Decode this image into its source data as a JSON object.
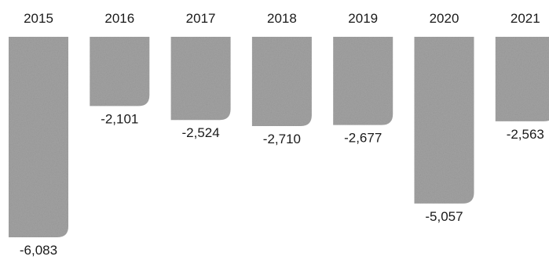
{
  "chart_data": {
    "type": "bar",
    "title": "",
    "xlabel": "",
    "ylabel": "",
    "categories": [
      "2015",
      "2016",
      "2017",
      "2018",
      "2019",
      "2020",
      "2021"
    ],
    "values": [
      -6083,
      -2101,
      -2524,
      -2710,
      -2677,
      -5057,
      -2563
    ],
    "value_labels": [
      "-6,083",
      "-2,101",
      "-2,524",
      "-2,710",
      "-2,677",
      "-5,057",
      "-2,563"
    ],
    "ylim": [
      -6083,
      0
    ],
    "grid": false,
    "legend": "none",
    "category_axis_position": "top",
    "bar_color": "#a3a3a3"
  }
}
